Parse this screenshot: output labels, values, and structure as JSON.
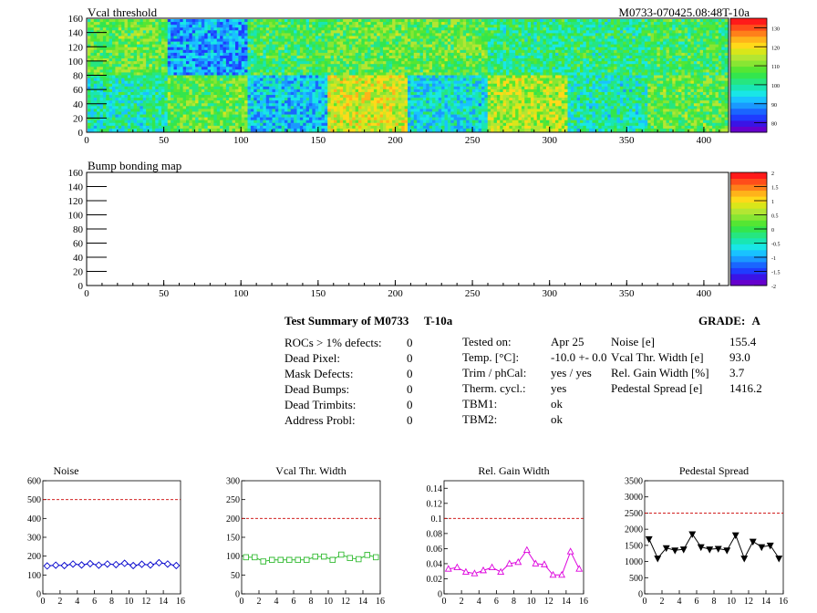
{
  "maps": [
    {
      "title": "Vcal threshold",
      "id_label": "M0733-070425.08:48T-10a",
      "x_ticks": [
        "0",
        "50",
        "100",
        "150",
        "200",
        "250",
        "300",
        "350",
        "400"
      ],
      "x_tick_values": [
        0,
        50,
        100,
        150,
        200,
        250,
        300,
        350,
        400
      ],
      "xlim": [
        0,
        416
      ],
      "y_ticks": [
        "0",
        "20",
        "40",
        "60",
        "80",
        "100",
        "120",
        "140",
        "160"
      ],
      "y_tick_values": [
        0,
        20,
        40,
        60,
        80,
        100,
        120,
        140,
        160
      ],
      "ylim": [
        0,
        160
      ],
      "palette_ticks": [
        "80",
        "90",
        "100",
        "110",
        "120",
        "130"
      ],
      "palette_values": [
        80,
        90,
        100,
        110,
        120,
        130
      ],
      "zlim": [
        75,
        135
      ]
    },
    {
      "title": "Bump bonding map",
      "x_ticks": [
        "0",
        "50",
        "100",
        "150",
        "200",
        "250",
        "300",
        "350",
        "400"
      ],
      "x_tick_values": [
        0,
        50,
        100,
        150,
        200,
        250,
        300,
        350,
        400
      ],
      "xlim": [
        0,
        416
      ],
      "y_ticks": [
        "0",
        "20",
        "40",
        "60",
        "80",
        "100",
        "120",
        "140",
        "160"
      ],
      "y_tick_values": [
        0,
        20,
        40,
        60,
        80,
        100,
        120,
        140,
        160
      ],
      "ylim": [
        0,
        160
      ],
      "palette_ticks": [
        "-2",
        "-1.5",
        "-1",
        "-0.5",
        "0",
        "0.5",
        "1",
        "1.5",
        "2"
      ],
      "palette_values": [
        -2,
        -1.5,
        -1,
        -0.5,
        0,
        0.5,
        1,
        1.5,
        2
      ],
      "zlim": [
        -2,
        2
      ]
    }
  ],
  "summary": {
    "title": "Test Summary of M0733",
    "temp_tag": "T-10a",
    "grade_label": "GRADE:",
    "grade": "A",
    "defects": [
      {
        "label": "ROCs > 1% defects:",
        "value": "0"
      },
      {
        "label": "Dead Pixel:",
        "value": "0"
      },
      {
        "label": "Mask Defects:",
        "value": "0"
      },
      {
        "label": "Dead Bumps:",
        "value": "0"
      },
      {
        "label": "Dead Trimbits:",
        "value": "0"
      },
      {
        "label": "Address Probl:",
        "value": "0"
      }
    ],
    "conditions": [
      {
        "label": "Tested on:",
        "value": "Apr 25"
      },
      {
        "label": "Temp. [°C]:",
        "value": "-10.0 +- 0.0"
      },
      {
        "label": "Trim / phCal:",
        "value": "yes / yes"
      },
      {
        "label": "Therm. cycl.:",
        "value": "yes"
      },
      {
        "label": "TBM1:",
        "value": "ok"
      },
      {
        "label": "TBM2:",
        "value": "ok"
      }
    ],
    "results": [
      {
        "label": "Noise [e]",
        "value": "155.4"
      },
      {
        "label": "Vcal Thr. Width [e]",
        "value": "93.0"
      },
      {
        "label": "Rel. Gain Width [%]",
        "value": "3.7"
      },
      {
        "label": "Pedestal Spread [e]",
        "value": "1416.2"
      }
    ]
  },
  "chart_data": [
    {
      "type": "line",
      "title": "Noise",
      "color": "#0000cc",
      "marker": "diamond",
      "x": [
        0,
        1,
        2,
        3,
        4,
        5,
        6,
        7,
        8,
        9,
        10,
        11,
        12,
        13,
        14,
        15
      ],
      "values": [
        148,
        152,
        150,
        158,
        153,
        160,
        152,
        158,
        155,
        162,
        150,
        157,
        153,
        165,
        158,
        150
      ],
      "error": [
        12,
        12,
        12,
        12,
        12,
        12,
        12,
        12,
        12,
        12,
        12,
        12,
        12,
        12,
        12,
        12
      ],
      "limit": 500,
      "ylim": [
        0,
        600
      ],
      "x_ticks": [
        "0",
        "2",
        "4",
        "6",
        "8",
        "10",
        "12",
        "14",
        "16"
      ],
      "x_tick_values": [
        0,
        2,
        4,
        6,
        8,
        10,
        12,
        14,
        16
      ],
      "y_ticks": [
        "0",
        "100",
        "200",
        "300",
        "400",
        "500",
        "600"
      ],
      "y_tick_values": [
        0,
        100,
        200,
        300,
        400,
        500,
        600
      ],
      "xlim": [
        0,
        16
      ]
    },
    {
      "type": "line",
      "title": "Vcal Thr. Width",
      "color": "#33bb33",
      "marker": "square",
      "x": [
        0,
        1,
        2,
        3,
        4,
        5,
        6,
        7,
        8,
        9,
        10,
        11,
        12,
        13,
        14,
        15
      ],
      "values": [
        97,
        97,
        86,
        90,
        90,
        90,
        90,
        90,
        99,
        99,
        90,
        104,
        95,
        92,
        103,
        97
      ],
      "limit": 200,
      "ylim": [
        0,
        300
      ],
      "x_ticks": [
        "0",
        "2",
        "4",
        "6",
        "8",
        "10",
        "12",
        "14",
        "16"
      ],
      "x_tick_values": [
        0,
        2,
        4,
        6,
        8,
        10,
        12,
        14,
        16
      ],
      "y_ticks": [
        "0",
        "50",
        "100",
        "150",
        "200",
        "250",
        "300"
      ],
      "y_tick_values": [
        0,
        50,
        100,
        150,
        200,
        250,
        300
      ],
      "xlim": [
        0,
        16
      ]
    },
    {
      "type": "line",
      "title": "Rel. Gain Width",
      "color": "#dd00dd",
      "marker": "triangle",
      "x": [
        0,
        1,
        2,
        3,
        4,
        5,
        6,
        7,
        8,
        9,
        10,
        11,
        12,
        13,
        14,
        15
      ],
      "values": [
        0.033,
        0.035,
        0.029,
        0.027,
        0.031,
        0.035,
        0.029,
        0.04,
        0.042,
        0.058,
        0.04,
        0.039,
        0.025,
        0.025,
        0.056,
        0.033
      ],
      "limit": 0.1,
      "ylim": [
        0,
        0.15
      ],
      "x_ticks": [
        "0",
        "2",
        "4",
        "6",
        "8",
        "10",
        "12",
        "14",
        "16"
      ],
      "x_tick_values": [
        0,
        2,
        4,
        6,
        8,
        10,
        12,
        14,
        16
      ],
      "y_ticks": [
        "0",
        "0.02",
        "0.04",
        "0.06",
        "0.08",
        "0.1",
        "0.12",
        "0.14"
      ],
      "y_tick_values": [
        0,
        0.02,
        0.04,
        0.06,
        0.08,
        0.1,
        0.12,
        0.14
      ],
      "xlim": [
        0,
        16
      ]
    },
    {
      "type": "line",
      "title": "Pedestal Spread",
      "color": "#000000",
      "marker": "triangle-down",
      "x": [
        0,
        1,
        2,
        3,
        4,
        5,
        6,
        7,
        8,
        9,
        10,
        11,
        12,
        13,
        14,
        15
      ],
      "values": [
        1700,
        1100,
        1420,
        1350,
        1380,
        1850,
        1450,
        1380,
        1400,
        1350,
        1820,
        1100,
        1620,
        1450,
        1500,
        1100
      ],
      "limit": 2500,
      "ylim": [
        0,
        3500
      ],
      "x_ticks": [
        "0",
        "2",
        "4",
        "6",
        "8",
        "10",
        "12",
        "14",
        "16"
      ],
      "x_tick_values": [
        0,
        2,
        4,
        6,
        8,
        10,
        12,
        14,
        16
      ],
      "y_ticks": [
        "0",
        "500",
        "1000",
        "1500",
        "2000",
        "2500",
        "3000",
        "3500"
      ],
      "y_tick_values": [
        0,
        500,
        1000,
        1500,
        2000,
        2500,
        3000,
        3500
      ],
      "xlim": [
        0,
        16
      ]
    }
  ]
}
